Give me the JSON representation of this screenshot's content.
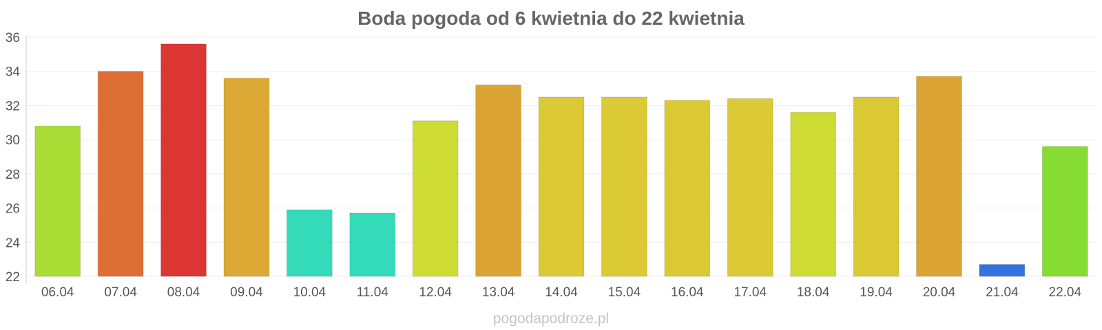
{
  "chart_data": {
    "type": "bar",
    "title": "Boda pogoda od 6 kwietnia do 22 kwietnia",
    "xlabel": "",
    "ylabel": "",
    "ylim": [
      22,
      36
    ],
    "yticks": [
      22,
      24,
      26,
      28,
      30,
      32,
      34,
      36
    ],
    "grid": true,
    "categories": [
      "06.04",
      "07.04",
      "08.04",
      "09.04",
      "10.04",
      "11.04",
      "12.04",
      "13.04",
      "14.04",
      "15.04",
      "16.04",
      "17.04",
      "18.04",
      "19.04",
      "20.04",
      "21.04",
      "22.04"
    ],
    "values": [
      30.8,
      34.0,
      35.6,
      33.6,
      25.9,
      25.7,
      31.1,
      33.2,
      32.5,
      32.5,
      32.3,
      32.4,
      31.6,
      32.5,
      33.7,
      22.7,
      29.6
    ],
    "colors": [
      "#a9dc34",
      "#dd6f34",
      "#db3634",
      "#dba934",
      "#34dbb9",
      "#34dbb9",
      "#cfdc34",
      "#dba334",
      "#dbca34",
      "#dbca34",
      "#dbc934",
      "#dbca34",
      "#cedc34",
      "#dbc934",
      "#dba334",
      "#3473db",
      "#87dc34"
    ]
  },
  "watermark": "pogodapodroze.pl"
}
